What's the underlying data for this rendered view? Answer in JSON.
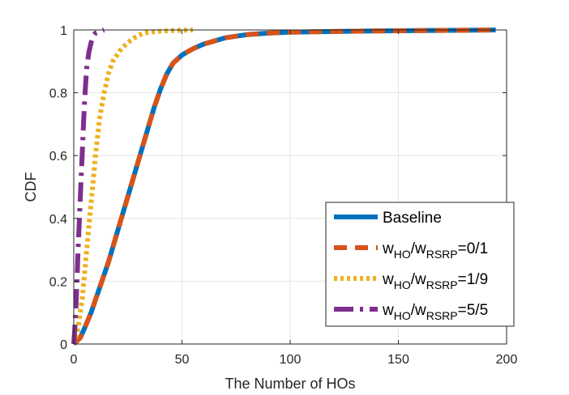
{
  "chart_data": {
    "type": "line",
    "xlabel": "The Number of HOs",
    "ylabel": "CDF",
    "xlim": [
      0,
      200
    ],
    "ylim": [
      0,
      1
    ],
    "xticks": [
      0,
      50,
      100,
      150,
      200
    ],
    "yticks": [
      0,
      0.2,
      0.4,
      0.6,
      0.8,
      1
    ],
    "xtick_labels": [
      "0",
      "50",
      "100",
      "150",
      "200"
    ],
    "ytick_labels": [
      "0",
      "0.2",
      "0.4",
      "0.6",
      "0.8",
      "1"
    ],
    "grid": true,
    "legend_position": "bottom-right",
    "series": [
      {
        "key": "baseline",
        "legend": {
          "main": "Baseline"
        },
        "color": "#0072BD",
        "style": "solid",
        "x": [
          0,
          3,
          5,
          8,
          10,
          13,
          16,
          19,
          22,
          25,
          28,
          31,
          34,
          37,
          40,
          43,
          46,
          50,
          55,
          60,
          65,
          70,
          80,
          90,
          100,
          120,
          140,
          160,
          180,
          195
        ],
        "y": [
          0,
          0.02,
          0.05,
          0.1,
          0.14,
          0.2,
          0.26,
          0.33,
          0.4,
          0.47,
          0.54,
          0.61,
          0.68,
          0.75,
          0.81,
          0.86,
          0.895,
          0.92,
          0.94,
          0.955,
          0.965,
          0.975,
          0.985,
          0.99,
          0.993,
          0.995,
          0.997,
          0.998,
          0.999,
          1
        ]
      },
      {
        "key": "ratio-0-1",
        "legend": {
          "w1": "w",
          "s1": "HO",
          "sep": "/w",
          "s2": "RSRP",
          "val": "=0/1"
        },
        "color": "#D95319",
        "style": "dashed",
        "x": [
          0,
          3,
          5,
          8,
          10,
          13,
          16,
          19,
          22,
          25,
          28,
          31,
          34,
          37,
          40,
          43,
          46,
          50,
          55,
          60,
          65,
          70,
          80,
          90,
          100,
          120,
          140,
          160,
          180,
          195
        ],
        "y": [
          0,
          0.02,
          0.05,
          0.1,
          0.14,
          0.2,
          0.26,
          0.33,
          0.4,
          0.47,
          0.54,
          0.61,
          0.68,
          0.75,
          0.81,
          0.86,
          0.895,
          0.92,
          0.94,
          0.955,
          0.965,
          0.975,
          0.985,
          0.99,
          0.993,
          0.995,
          0.997,
          0.998,
          0.999,
          1
        ]
      },
      {
        "key": "ratio-1-9",
        "legend": {
          "w1": "w",
          "s1": "HO",
          "sep": "/w",
          "s2": "RSRP",
          "val": "=1/9"
        },
        "color": "#EDB120",
        "style": "dotted",
        "x": [
          0,
          2,
          4,
          6,
          8,
          9,
          10,
          11,
          12,
          13,
          14,
          15,
          16,
          18,
          20,
          22,
          25,
          28,
          32,
          38,
          45,
          55
        ],
        "y": [
          0,
          0.05,
          0.15,
          0.3,
          0.45,
          0.52,
          0.6,
          0.66,
          0.72,
          0.76,
          0.8,
          0.83,
          0.86,
          0.9,
          0.92,
          0.94,
          0.96,
          0.975,
          0.99,
          0.995,
          0.998,
          1
        ]
      },
      {
        "key": "ratio-5-5",
        "legend": {
          "w1": "w",
          "s1": "HO",
          "sep": "/w",
          "s2": "RSRP",
          "val": "=5/5"
        },
        "color": "#7E2F8E",
        "style": "dashdot",
        "x": [
          0,
          0.5,
          1,
          1.5,
          2,
          2.5,
          3,
          3.5,
          4,
          4.5,
          5,
          5.5,
          6,
          7,
          8,
          9,
          10,
          12,
          14
        ],
        "y": [
          0,
          0.05,
          0.12,
          0.2,
          0.3,
          0.38,
          0.46,
          0.54,
          0.62,
          0.7,
          0.77,
          0.83,
          0.88,
          0.93,
          0.96,
          0.98,
          0.99,
          0.995,
          1
        ]
      }
    ]
  }
}
